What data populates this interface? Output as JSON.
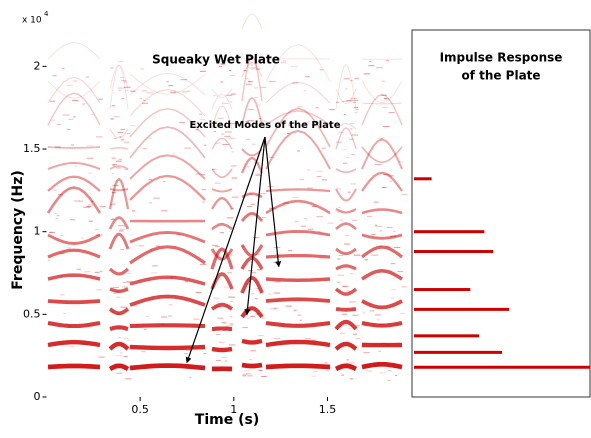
{
  "chart_data": {
    "type": "spectrogram",
    "title": "Squeaky Wet Plate",
    "x_label": "Time (s)",
    "y_label": "Frequency (Hz)",
    "y_multiplier": "x 10",
    "y_multiplier_exponent": "4",
    "xlim": [
      0,
      1.93
    ],
    "xticks": [
      0.5,
      1,
      1.5
    ],
    "ylim": [
      0,
      2.22
    ],
    "yticks": [
      0,
      0.5,
      1,
      1.5,
      2
    ],
    "color": "#cc0000",
    "annotation": {
      "text": "Excited Modes of the Plate",
      "x": [
        0.75,
        1.07,
        1.24
      ],
      "y": [
        0.21,
        0.5,
        0.79
      ]
    },
    "impulse_response": {
      "type": "stem",
      "title_lines": [
        "Impulse Response",
        "of the Plate"
      ],
      "y": [
        0.18,
        0.27,
        0.37,
        0.53,
        0.65,
        0.88,
        1.0,
        1.32
      ],
      "values": [
        1.0,
        0.5,
        0.37,
        0.54,
        0.32,
        0.45,
        0.4,
        0.1
      ],
      "color": "#cc0000"
    }
  }
}
